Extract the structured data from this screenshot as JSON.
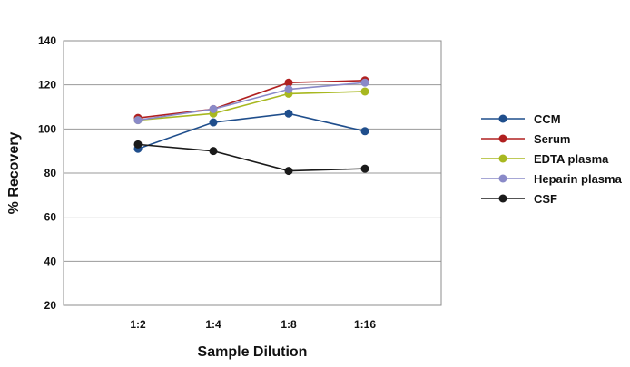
{
  "chart_data": {
    "type": "line",
    "categories": [
      "1:2",
      "1:4",
      "1:8",
      "1:16"
    ],
    "xlabel": "Sample Dilution",
    "ylabel": "% Recovery",
    "ylim": [
      20,
      140
    ],
    "yticks": [
      20,
      40,
      60,
      80,
      100,
      120,
      140
    ],
    "grid": "horizontal",
    "legend": "right",
    "series": [
      {
        "name": "CCM",
        "color": "#1f4e8c",
        "values": [
          91,
          103,
          107,
          99
        ]
      },
      {
        "name": "Serum",
        "color": "#b02020",
        "values": [
          105,
          109,
          121,
          122
        ]
      },
      {
        "name": "EDTA plasma",
        "color": "#a8b820",
        "values": [
          104,
          107,
          116,
          117
        ]
      },
      {
        "name": "Heparin plasma",
        "color": "#8a8ac8",
        "values": [
          104,
          109,
          118,
          121
        ]
      },
      {
        "name": "CSF",
        "color": "#1a1a1a",
        "values": [
          93,
          90,
          81,
          82
        ]
      }
    ]
  }
}
